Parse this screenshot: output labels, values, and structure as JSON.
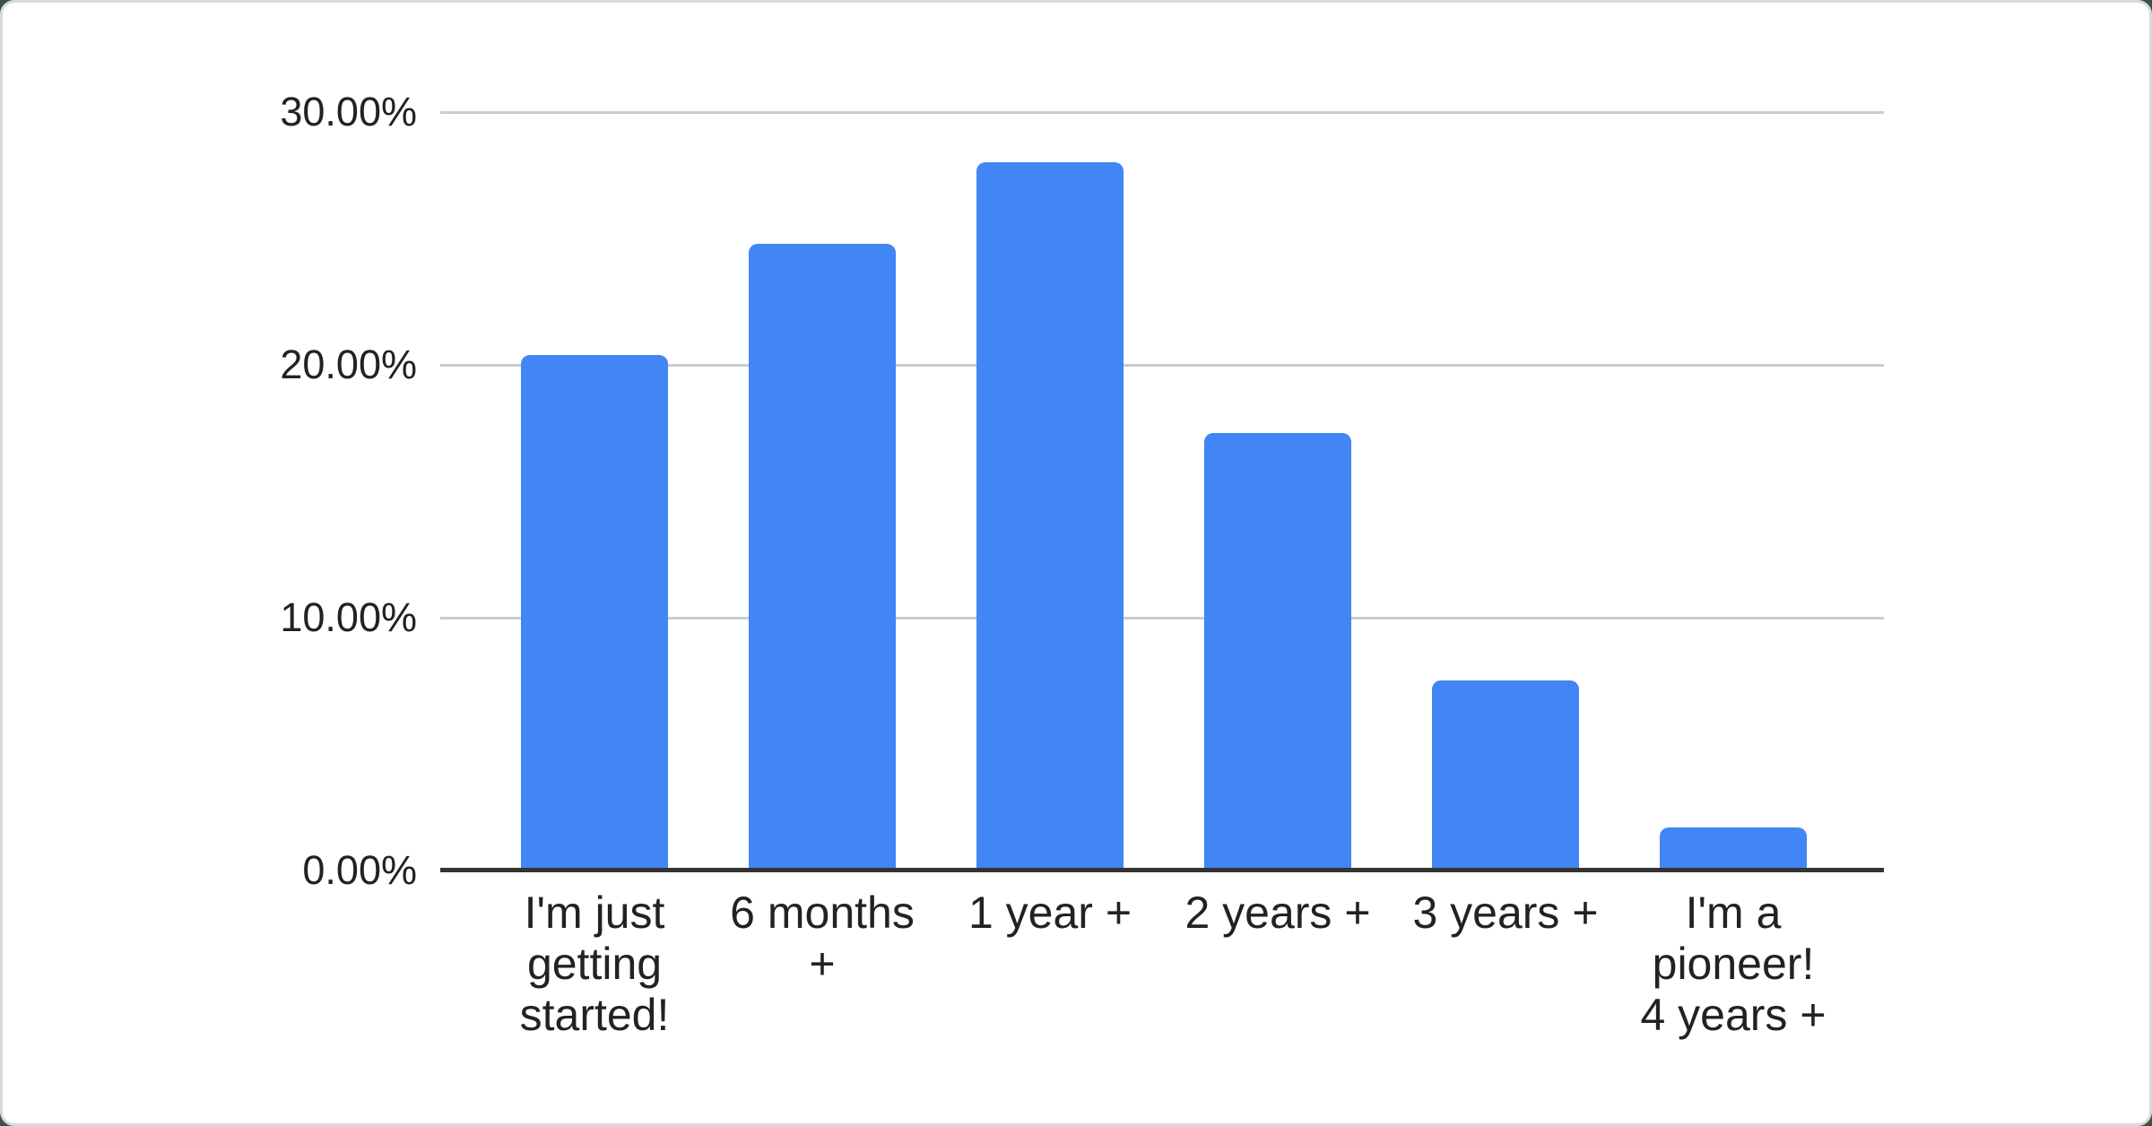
{
  "page": {
    "background_color": "#3e5244",
    "card_background": "#ffffff",
    "card_border_color": "#d7dbdc"
  },
  "chart_data": {
    "type": "bar",
    "title": "",
    "xlabel": "",
    "ylabel": "",
    "categories": [
      "I'm just getting started!",
      "6 months +",
      "1 year +",
      "2 years +",
      "3 years +",
      "I'm a pioneer! 4 years +"
    ],
    "category_display_lines": [
      "I'm just\ngetting\nstarted!",
      "6 months\n+",
      "1 year +",
      "2 years +",
      "3 years +",
      "I'm a\npioneer!\n4 years +"
    ],
    "values": [
      20.4,
      24.8,
      28.0,
      17.3,
      7.5,
      1.7
    ],
    "value_unit": "%",
    "ylim": [
      0,
      30
    ],
    "y_ticks": [
      {
        "value": 0,
        "label": "0.00%"
      },
      {
        "value": 10,
        "label": "10.00%"
      },
      {
        "value": 20,
        "label": "20.00%"
      },
      {
        "value": 30,
        "label": "30.00%"
      }
    ],
    "grid": true,
    "legend_position": "none",
    "bar_color": "#4285f4",
    "gridline_color": "#cccccc",
    "axis_line_color": "#333333",
    "label_color": "#222222"
  }
}
